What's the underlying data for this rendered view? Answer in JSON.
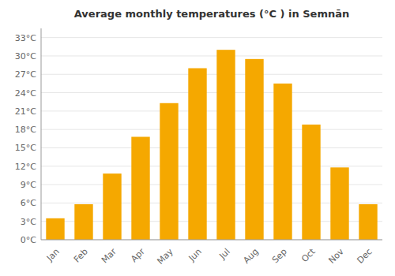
{
  "chart_data": {
    "type": "bar",
    "title": "Average monthly temperatures (°C ) in Semnān",
    "categories": [
      "Jan",
      "Feb",
      "Mar",
      "Apr",
      "May",
      "Jun",
      "Jul",
      "Aug",
      "Sep",
      "Oct",
      "Nov",
      "Dec"
    ],
    "values": [
      3.5,
      5.8,
      10.8,
      16.8,
      22.3,
      28.0,
      31.0,
      29.5,
      25.5,
      18.8,
      11.8,
      5.8
    ],
    "color": "#F5A800",
    "ylim": [
      0,
      34.5
    ],
    "yticks": [
      {
        "value": 0,
        "label": "0°C"
      },
      {
        "value": 3,
        "label": "3°C"
      },
      {
        "value": 6,
        "label": "6°C"
      },
      {
        "value": 9,
        "label": "9°C"
      },
      {
        "value": 12,
        "label": "12°C"
      },
      {
        "value": 15,
        "label": "15°C"
      },
      {
        "value": 18,
        "label": "18°C"
      },
      {
        "value": 21,
        "label": "21°C"
      },
      {
        "value": 24,
        "label": "24°C"
      },
      {
        "value": 27,
        "label": "27°C"
      },
      {
        "value": 30,
        "label": "30°C"
      },
      {
        "value": 33,
        "label": "33°C"
      }
    ],
    "grid": true
  }
}
